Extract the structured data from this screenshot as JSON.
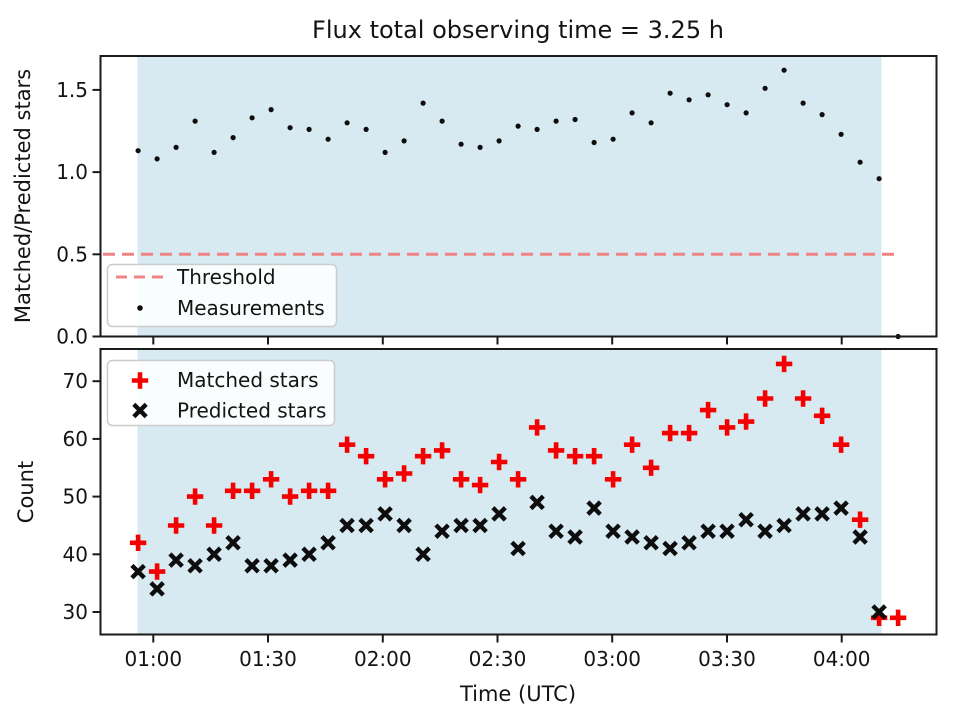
{
  "title": "Flux total observing time = 3.25 h",
  "colors": {
    "shading": "#d7eaf1",
    "threshold": "#ee8484",
    "matched": "#f40000",
    "measurements": "#0d0d0d",
    "predicted": "#0d0d0d",
    "axis": "#1a1a1a"
  },
  "top_plot": {
    "ylabel": "Matched/Predicted stars",
    "ytick_labels": [
      "0.0",
      "0.5",
      "1.0",
      "1.5"
    ],
    "legend": {
      "threshold_label": "Threshold",
      "measurements_label": "Measurements"
    }
  },
  "bottom_plot": {
    "ylabel": "Count",
    "xlabel": "Time (UTC)",
    "ytick_labels": [
      "30",
      "40",
      "50",
      "60",
      "70"
    ],
    "xtick_labels": [
      "01:00",
      "01:30",
      "02:00",
      "02:30",
      "03:00",
      "03:30",
      "04:00"
    ],
    "legend": {
      "matched_label": "Matched stars",
      "predicted_label": "Predicted stars"
    }
  },
  "chart_data": [
    {
      "type": "scatter",
      "subplot": "top",
      "title": "Flux total observing time = 3.25 h",
      "ylabel": "Matched/Predicted stars",
      "yticks": [
        0.0,
        0.5,
        1.0,
        1.5
      ],
      "ylim": [
        0.0,
        1.71
      ],
      "grid": false,
      "legend_position": "lower left",
      "threshold": {
        "label": "Threshold",
        "value": 0.5,
        "style": "dashed",
        "color": "red"
      },
      "shaded_region": {
        "from": "00:55",
        "to": "04:10",
        "color": "lightblue"
      },
      "x": [
        "00:56",
        "01:01",
        "01:06",
        "01:11",
        "01:16",
        "01:21",
        "01:26",
        "01:31",
        "01:36",
        "01:41",
        "01:46",
        "01:51",
        "01:56",
        "02:01",
        "02:06",
        "02:11",
        "02:16",
        "02:21",
        "02:26",
        "02:31",
        "02:36",
        "02:41",
        "02:46",
        "02:51",
        "02:56",
        "03:01",
        "03:06",
        "03:11",
        "03:16",
        "03:21",
        "03:26",
        "03:31",
        "03:36",
        "03:41",
        "03:46",
        "03:51",
        "03:56",
        "04:01",
        "04:06",
        "04:11",
        "04:16"
      ],
      "series": [
        {
          "name": "Measurements",
          "marker": "point",
          "color": "black",
          "values": [
            1.13,
            1.08,
            1.15,
            1.31,
            1.12,
            1.21,
            1.33,
            1.38,
            1.27,
            1.26,
            1.2,
            1.3,
            1.26,
            1.12,
            1.19,
            1.42,
            1.31,
            1.17,
            1.15,
            1.19,
            1.28,
            1.26,
            1.31,
            1.32,
            1.18,
            1.2,
            1.36,
            1.3,
            1.48,
            1.44,
            1.47,
            1.41,
            1.36,
            1.51,
            1.62,
            1.42,
            1.35,
            1.23,
            1.06,
            0.96,
            0.0
          ]
        }
      ]
    },
    {
      "type": "scatter",
      "subplot": "bottom",
      "ylabel": "Count",
      "xlabel": "Time (UTC)",
      "yticks": [
        30,
        40,
        50,
        60,
        70
      ],
      "xticks": [
        "01:00",
        "01:30",
        "02:00",
        "02:30",
        "03:00",
        "03:30",
        "04:00"
      ],
      "ylim": [
        26,
        75
      ],
      "grid": false,
      "legend_position": "upper left",
      "shaded_region": {
        "from": "00:55",
        "to": "04:10",
        "color": "lightblue"
      },
      "x": [
        "00:56",
        "01:01",
        "01:06",
        "01:11",
        "01:16",
        "01:21",
        "01:26",
        "01:31",
        "01:36",
        "01:41",
        "01:46",
        "01:51",
        "01:56",
        "02:01",
        "02:06",
        "02:11",
        "02:16",
        "02:21",
        "02:26",
        "02:31",
        "02:36",
        "02:41",
        "02:46",
        "02:51",
        "02:56",
        "03:01",
        "03:06",
        "03:11",
        "03:16",
        "03:21",
        "03:26",
        "03:31",
        "03:36",
        "03:41",
        "03:46",
        "03:51",
        "03:56",
        "04:01",
        "04:06",
        "04:11",
        "04:16"
      ],
      "series": [
        {
          "name": "Matched stars",
          "marker": "plus",
          "color": "red",
          "values": [
            42,
            37,
            45,
            50,
            45,
            51,
            51,
            53,
            50,
            51,
            51,
            59,
            57,
            53,
            54,
            57,
            58,
            53,
            52,
            56,
            53,
            62,
            58,
            57,
            57,
            53,
            59,
            55,
            61,
            61,
            65,
            62,
            63,
            67,
            73,
            67,
            64,
            59,
            46,
            29,
            29
          ]
        },
        {
          "name": "Predicted stars",
          "marker": "x",
          "color": "black",
          "values": [
            37,
            34,
            39,
            38,
            40,
            42,
            38,
            38,
            39,
            40,
            42,
            45,
            45,
            47,
            45,
            40,
            44,
            45,
            45,
            47,
            41,
            49,
            44,
            43,
            48,
            44,
            43,
            42,
            41,
            42,
            44,
            44,
            46,
            44,
            45,
            47,
            47,
            48,
            43,
            30,
            null
          ]
        }
      ]
    }
  ]
}
